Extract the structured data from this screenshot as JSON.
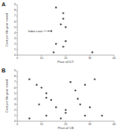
{
  "chart_data": [
    {
      "type": "scatter",
      "title": "A",
      "x_label": "Price of ICT",
      "y_label": "Cost per life-year saved",
      "x": [
        16,
        19,
        19,
        18,
        20,
        14,
        16,
        20,
        19,
        31,
        15
      ],
      "values": [
        8.5,
        7.5,
        6.5,
        5.5,
        5,
        4.3,
        2,
        2.5,
        1.5,
        0.5,
        0.5
      ],
      "color": "#555555",
      "marker": "circle",
      "xlim": [
        0,
        40
      ],
      "xticks": [
        0,
        10,
        20,
        30,
        40
      ],
      "ylim": [
        0,
        9
      ],
      "yticks": [
        0,
        1,
        2,
        3,
        4,
        5,
        6,
        7,
        8,
        9
      ],
      "annotations": [
        {
          "text": "Index case",
          "x": 14,
          "y": 4.3
        }
      ]
    },
    {
      "type": "scatter",
      "title": "B",
      "x_label": "Price of CB",
      "y_label": "Cost per life-year saved",
      "x": [
        5,
        8,
        10,
        12,
        12,
        14,
        9,
        16,
        20,
        22,
        24,
        25,
        26,
        28,
        30,
        32,
        35,
        5,
        12,
        18,
        20,
        28
      ],
      "values": [
        7.5,
        6.5,
        6,
        5,
        4.2,
        3.8,
        3,
        2.5,
        2,
        7,
        5.5,
        4,
        3,
        6.5,
        2.5,
        7.5,
        1,
        0.5,
        1,
        0.5,
        1.5,
        1
      ],
      "color": "#555555",
      "marker": "circle",
      "xlim": [
        0,
        40
      ],
      "xticks": [
        0,
        10,
        20,
        30,
        40
      ],
      "ylim": [
        0,
        9
      ],
      "yticks": [
        0,
        1,
        2,
        3,
        4,
        5,
        6,
        7,
        8,
        9
      ]
    }
  ]
}
